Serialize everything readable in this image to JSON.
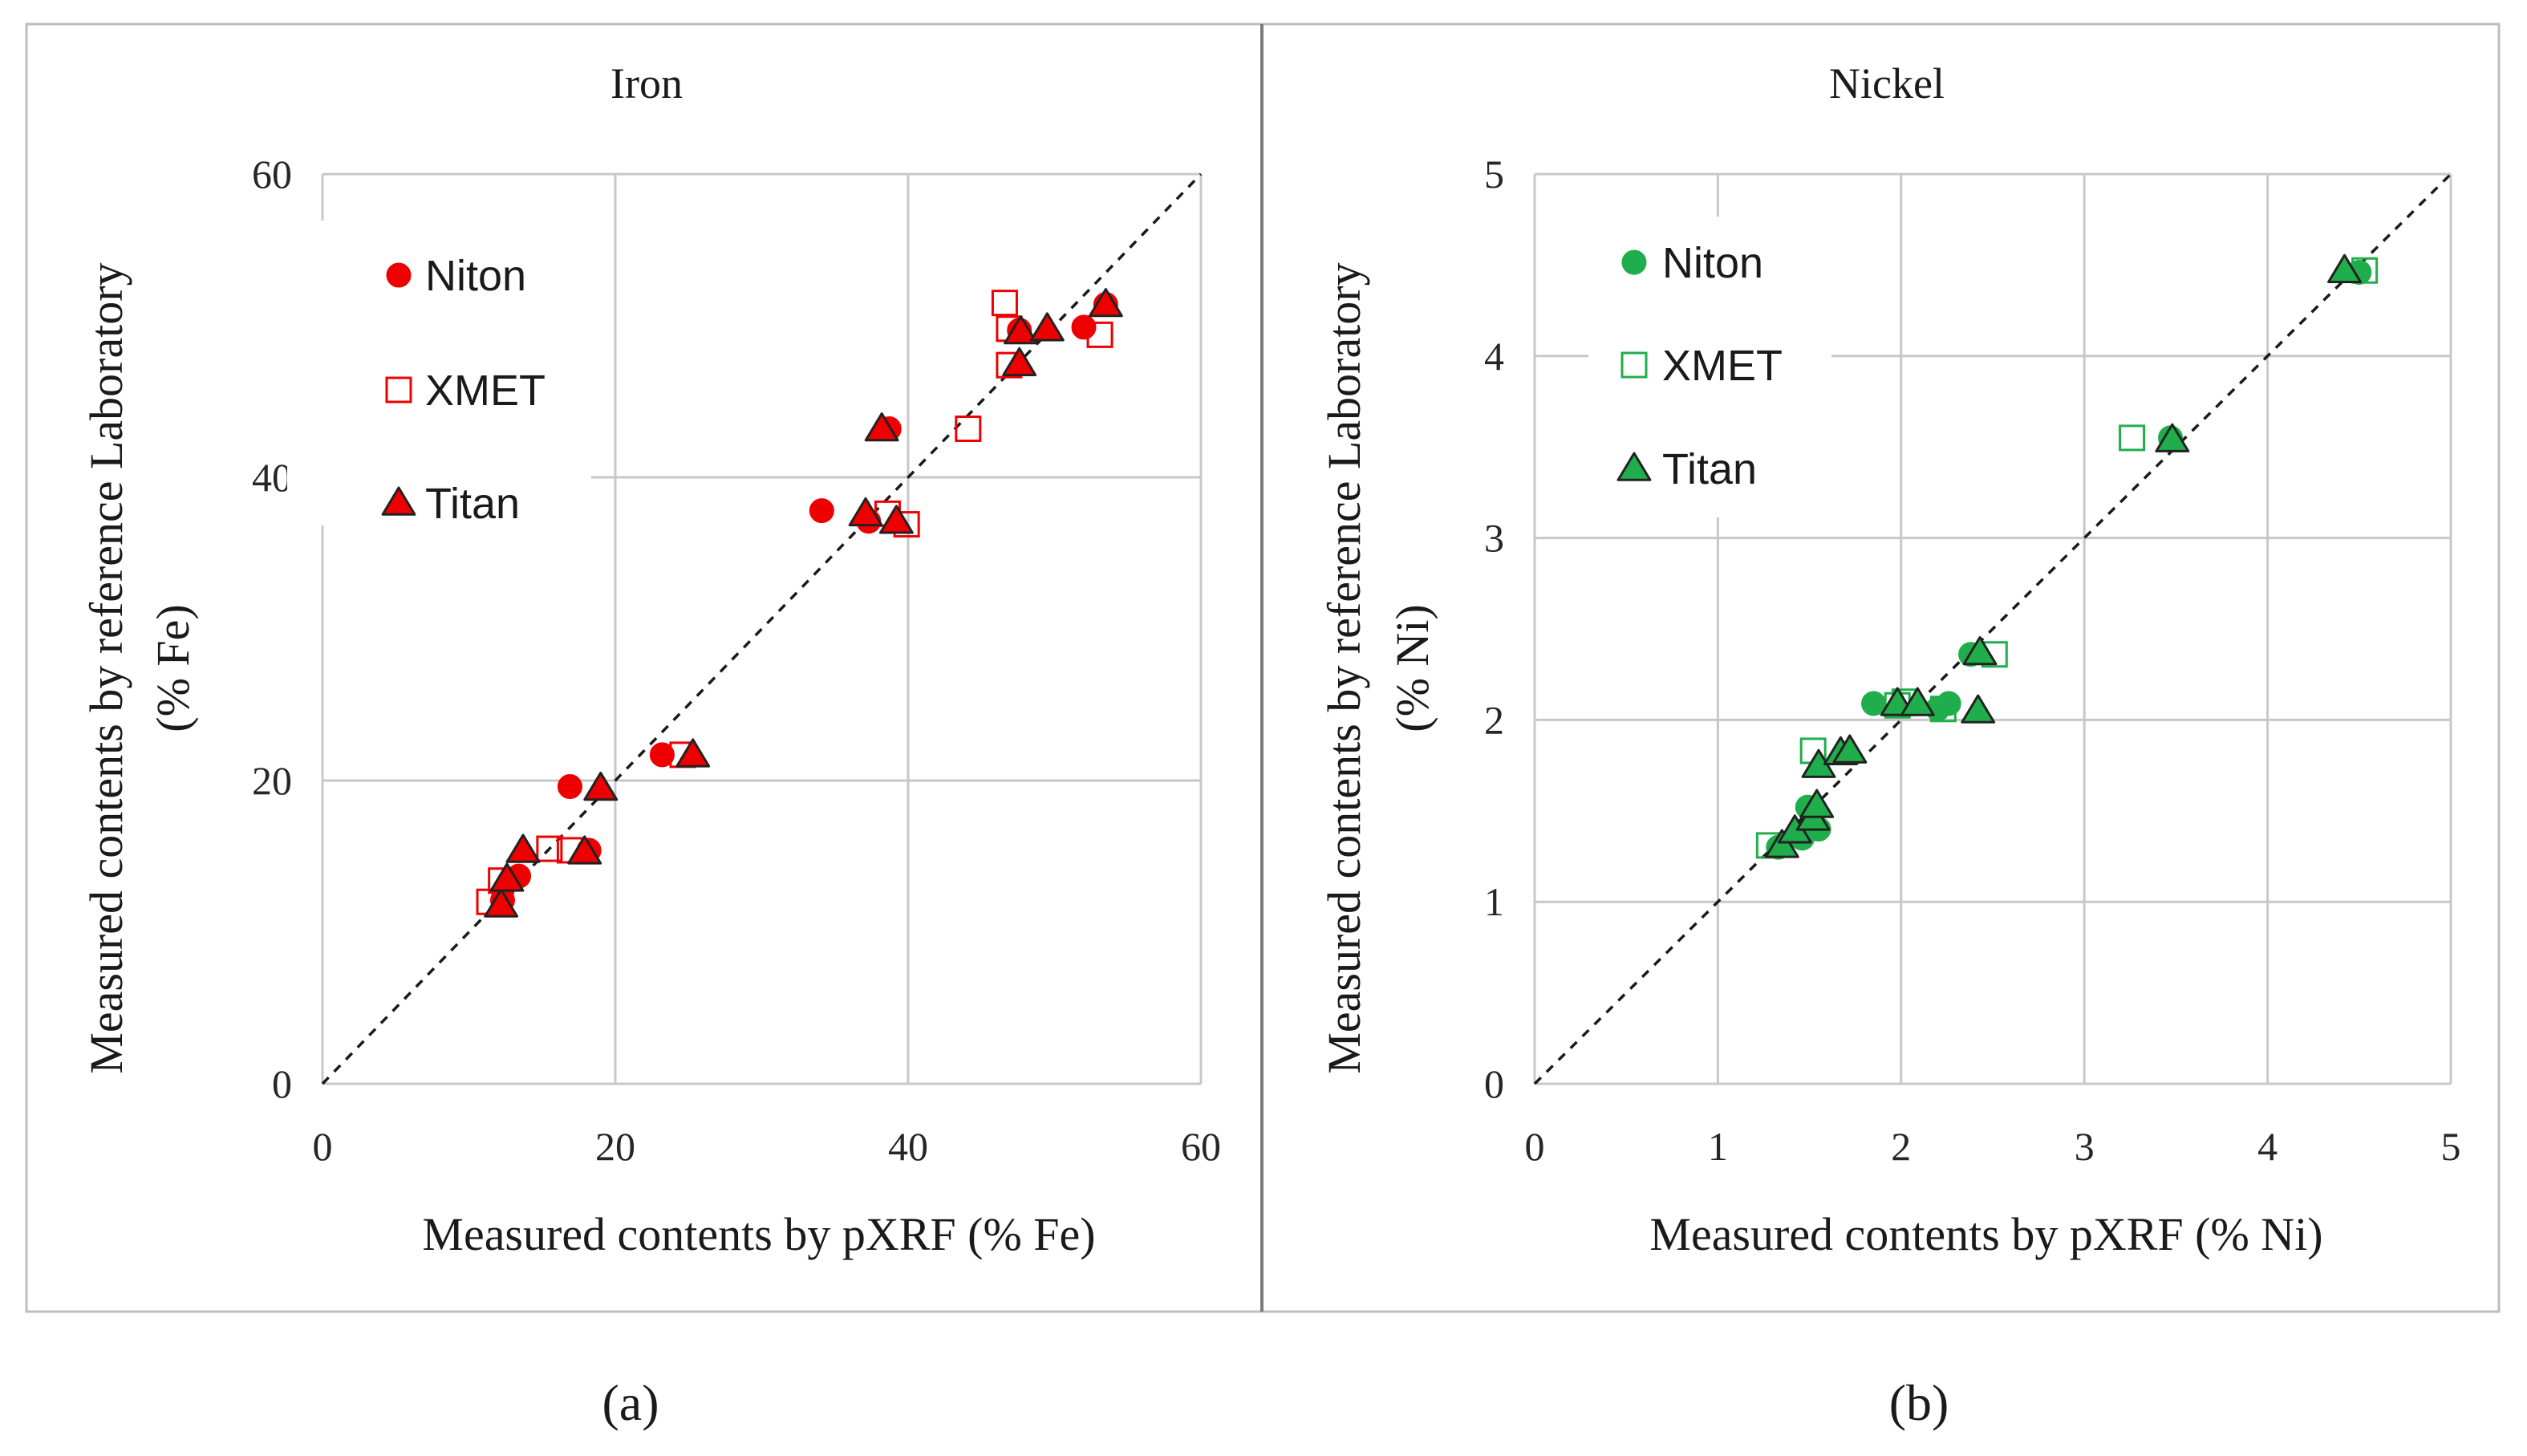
{
  "colors": {
    "iron": "#ee0000",
    "nickel": "#1fae4b",
    "marker_edge": "#222222"
  },
  "chart_data": [
    {
      "type": "scatter",
      "title": "Iron",
      "xlabel": "Measured contents by pXRF  (% Fe)",
      "ylabel_line1": "Measured contents by reference Laboratory",
      "ylabel_line2": "(% Fe)",
      "xlim": [
        0,
        60
      ],
      "ylim": [
        0,
        60
      ],
      "x_ticks": [
        0,
        20,
        40,
        60
      ],
      "y_ticks": [
        0,
        20,
        40,
        60
      ],
      "x_tick_labels": [
        "0",
        "20",
        "40",
        "60"
      ],
      "y_tick_labels": [
        "0",
        "20",
        "40",
        "60"
      ],
      "grid": true,
      "diagonal": "1:1 dashed line",
      "legend_position": "top-left",
      "series": [
        {
          "name": "Niton",
          "marker": "circle",
          "points": [
            [
              12.3,
              12.1
            ],
            [
              13.4,
              13.7
            ],
            [
              18.2,
              15.4
            ],
            [
              16.9,
              19.6
            ],
            [
              23.2,
              21.7
            ],
            [
              34.1,
              37.8
            ],
            [
              37.3,
              37.1
            ],
            [
              38.7,
              43.2
            ],
            [
              47.6,
              49.7
            ],
            [
              52.0,
              49.9
            ],
            [
              53.5,
              51.4
            ]
          ]
        },
        {
          "name": "XMET",
          "marker": "open-square",
          "points": [
            [
              11.4,
              12.0
            ],
            [
              12.2,
              13.4
            ],
            [
              15.5,
              15.5
            ],
            [
              16.9,
              15.4
            ],
            [
              24.6,
              21.7
            ],
            [
              38.6,
              37.6
            ],
            [
              39.9,
              36.9
            ],
            [
              44.1,
              43.2
            ],
            [
              46.6,
              51.5
            ],
            [
              46.9,
              49.8
            ],
            [
              46.9,
              47.4
            ],
            [
              53.1,
              49.4
            ]
          ]
        },
        {
          "name": "Titan",
          "marker": "triangle",
          "points": [
            [
              12.2,
              11.8
            ],
            [
              12.6,
              13.5
            ],
            [
              13.7,
              15.4
            ],
            [
              17.9,
              15.3
            ],
            [
              19.0,
              19.5
            ],
            [
              25.3,
              21.7
            ],
            [
              37.1,
              37.6
            ],
            [
              39.2,
              37.1
            ],
            [
              38.2,
              43.2
            ],
            [
              47.6,
              47.5
            ],
            [
              47.7,
              49.6
            ],
            [
              49.5,
              49.8
            ],
            [
              53.5,
              51.4
            ]
          ]
        }
      ]
    },
    {
      "type": "scatter",
      "title": "Nickel",
      "xlabel": "Measured contents by pXRF  (% Ni)",
      "ylabel_line1": "Measured contents by reference Laboratory",
      "ylabel_line2": "(% Ni)",
      "xlim": [
        0,
        5
      ],
      "ylim": [
        0,
        5
      ],
      "x_ticks": [
        0,
        1,
        2,
        3,
        4,
        5
      ],
      "y_ticks": [
        0,
        1,
        2,
        3,
        4,
        5
      ],
      "x_tick_labels": [
        "0",
        "1",
        "2",
        "3",
        "4",
        "5"
      ],
      "y_tick_labels": [
        "0",
        "1",
        "2",
        "3",
        "4",
        "5"
      ],
      "grid": true,
      "diagonal": "1:1 dashed line",
      "legend_position": "top-left",
      "series": [
        {
          "name": "Niton",
          "marker": "circle",
          "points": [
            [
              1.33,
              1.3
            ],
            [
              1.46,
              1.35
            ],
            [
              1.49,
              1.52
            ],
            [
              1.55,
              1.4
            ],
            [
              1.85,
              2.09
            ],
            [
              2.2,
              2.06
            ],
            [
              2.26,
              2.09
            ],
            [
              2.38,
              2.36
            ],
            [
              3.47,
              3.55
            ],
            [
              4.5,
              4.46
            ]
          ]
        },
        {
          "name": "XMET",
          "marker": "open-square",
          "points": [
            [
              1.28,
              1.31
            ],
            [
              1.52,
              1.83
            ],
            [
              1.98,
              2.08
            ],
            [
              2.02,
              2.1
            ],
            [
              2.23,
              2.06
            ],
            [
              2.51,
              2.36
            ],
            [
              3.26,
              3.55
            ],
            [
              4.53,
              4.47
            ]
          ]
        },
        {
          "name": "Titan",
          "marker": "triangle",
          "points": [
            [
              1.35,
              1.31
            ],
            [
              1.42,
              1.39
            ],
            [
              1.52,
              1.46
            ],
            [
              1.54,
              1.53
            ],
            [
              1.55,
              1.75
            ],
            [
              1.67,
              1.82
            ],
            [
              1.72,
              1.83
            ],
            [
              1.98,
              2.09
            ],
            [
              2.09,
              2.09
            ],
            [
              2.42,
              2.05
            ],
            [
              2.43,
              2.37
            ],
            [
              3.48,
              3.54
            ],
            [
              4.42,
              4.47
            ]
          ]
        }
      ]
    }
  ],
  "panel_labels": [
    "(a)",
    "(b)"
  ]
}
